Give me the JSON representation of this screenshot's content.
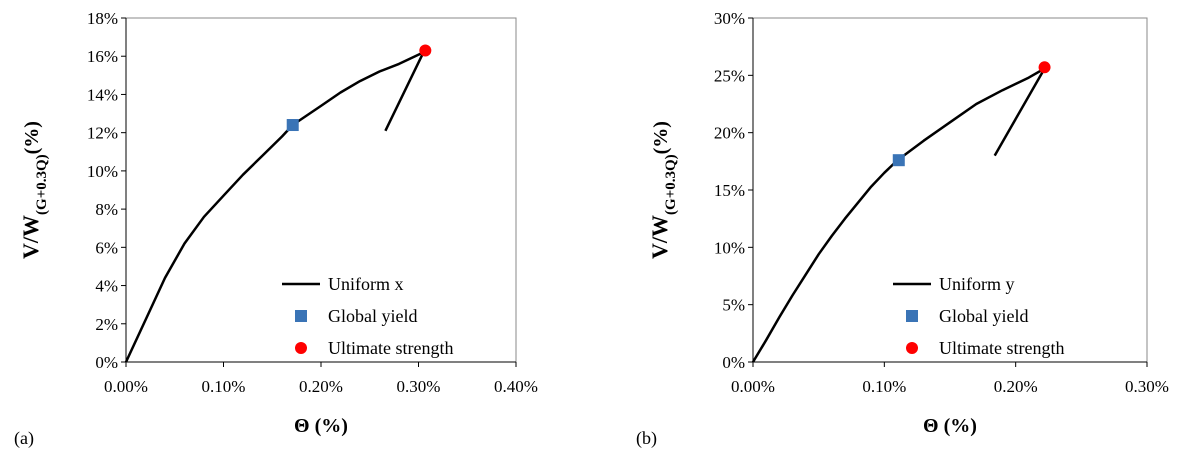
{
  "chart_data": [
    {
      "type": "line",
      "panel_label": "(a)",
      "xlabel": "Θ (%)",
      "ylabel_main": "V/W",
      "ylabel_sub": "(G+0.3Q)",
      "ylabel_suffix": "(%)",
      "xlim": [
        0,
        0.4
      ],
      "ylim": [
        0,
        18
      ],
      "x_ticks": [
        "0.00%",
        "0.10%",
        "0.20%",
        "0.30%",
        "0.40%"
      ],
      "y_ticks": [
        "0%",
        "2%",
        "4%",
        "6%",
        "8%",
        "10%",
        "12%",
        "14%",
        "16%",
        "18%"
      ],
      "series": [
        {
          "name": "Uniform x",
          "kind": "line",
          "color": "#000000",
          "x": [
            0,
            0.02,
            0.04,
            0.06,
            0.08,
            0.1,
            0.12,
            0.14,
            0.16,
            0.171,
            0.2,
            0.22,
            0.24,
            0.26,
            0.28,
            0.305,
            0.266
          ],
          "y": [
            0,
            2.2,
            4.4,
            6.2,
            7.6,
            8.7,
            9.8,
            10.8,
            11.8,
            12.4,
            13.4,
            14.1,
            14.7,
            15.2,
            15.6,
            16.2,
            12.1
          ]
        },
        {
          "name": "Global yield",
          "kind": "marker",
          "shape": "square",
          "color": "#3A74B6",
          "x": [
            0.171
          ],
          "y": [
            12.4
          ]
        },
        {
          "name": "Ultimate strength",
          "kind": "marker",
          "shape": "circle",
          "color": "#FF0000",
          "x": [
            0.307
          ],
          "y": [
            16.3
          ]
        }
      ]
    },
    {
      "type": "line",
      "panel_label": "(b)",
      "xlabel": "Θ (%)",
      "ylabel_main": "V/W",
      "ylabel_sub": "(G+0.3Q)",
      "ylabel_suffix": "(%)",
      "xlim": [
        0,
        0.3
      ],
      "ylim": [
        0,
        30
      ],
      "x_ticks": [
        "0.00%",
        "0.10%",
        "0.20%",
        "0.30%"
      ],
      "y_ticks": [
        "0%",
        "5%",
        "10%",
        "15%",
        "20%",
        "25%",
        "30%"
      ],
      "series": [
        {
          "name": "Uniform y",
          "kind": "line",
          "color": "#000000",
          "x": [
            0,
            0.01,
            0.02,
            0.03,
            0.04,
            0.05,
            0.06,
            0.07,
            0.08,
            0.09,
            0.1,
            0.11,
            0.13,
            0.15,
            0.17,
            0.19,
            0.21,
            0.222,
            0.184
          ],
          "y": [
            0,
            1.9,
            3.9,
            5.8,
            7.6,
            9.4,
            11.0,
            12.5,
            13.9,
            15.3,
            16.5,
            17.6,
            19.3,
            20.9,
            22.5,
            23.7,
            24.8,
            25.6,
            18.0
          ]
        },
        {
          "name": "Global yield",
          "kind": "marker",
          "shape": "square",
          "color": "#3A74B6",
          "x": [
            0.111
          ],
          "y": [
            17.6
          ]
        },
        {
          "name": "Ultimate strength",
          "kind": "marker",
          "shape": "circle",
          "color": "#FF0000",
          "x": [
            0.222
          ],
          "y": [
            25.7
          ]
        }
      ]
    }
  ]
}
